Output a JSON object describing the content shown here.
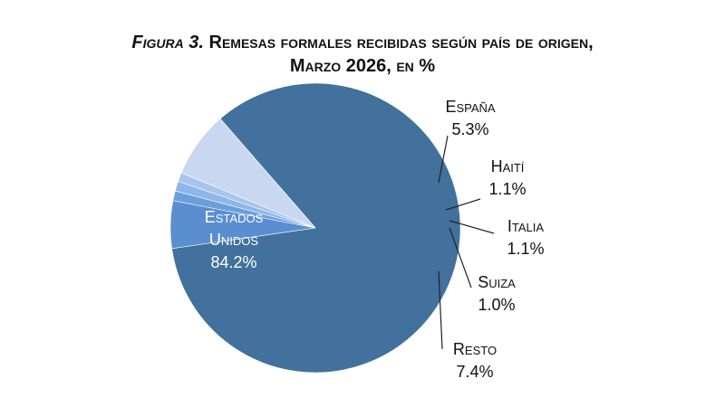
{
  "chart_data": {
    "type": "pie",
    "title_prefix": "Figura 3.",
    "title_line1": "Remesas formales recibidas según país de origen,",
    "title_line2": "Marzo 2026, en %",
    "unit": "%",
    "slices": [
      {
        "name": "Estados Unidos",
        "label_lines": [
          "Estados",
          "Unidos"
        ],
        "value": 84.2,
        "value_label": "84.2%",
        "color": "#41719c"
      },
      {
        "name": "España",
        "label_lines": [
          "España"
        ],
        "value": 5.3,
        "value_label": "5.3%",
        "color": "#5a8ed1"
      },
      {
        "name": "Haití",
        "label_lines": [
          "Haití"
        ],
        "value": 1.1,
        "value_label": "1.1%",
        "color": "#6b9fdc"
      },
      {
        "name": "Italia",
        "label_lines": [
          "Italia"
        ],
        "value": 1.1,
        "value_label": "1.1%",
        "color": "#8fb6e8"
      },
      {
        "name": "Suiza",
        "label_lines": [
          "Suiza"
        ],
        "value": 1.0,
        "value_label": "1.0%",
        "color": "#a6c4ec"
      },
      {
        "name": "Resto",
        "label_lines": [
          "Resto"
        ],
        "value": 7.4,
        "value_label": "7.4%",
        "color": "#c9d8f0"
      }
    ]
  }
}
